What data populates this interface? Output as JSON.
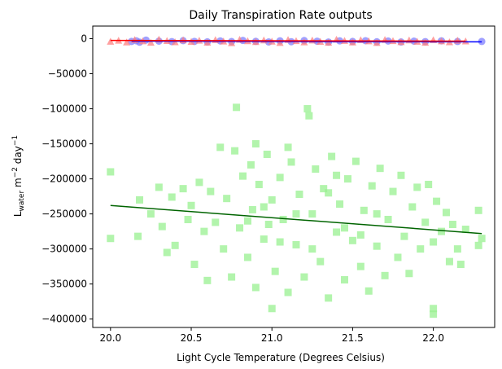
{
  "chart_data": {
    "type": "scatter",
    "title": "Daily Transpiration Rate outputs",
    "xlabel": "Light Cycle Temperature (Degrees Celsius)",
    "ylabel": {
      "base": "L",
      "sub": "water",
      "unit1": " m",
      "exp1": "−2",
      "unit2": " day",
      "exp2": "−1"
    },
    "xlim": [
      19.89,
      22.38
    ],
    "ylim": [
      -412000,
      18000
    ],
    "x_ticks": [
      {
        "value": 20.0,
        "label": "20.0"
      },
      {
        "value": 20.5,
        "label": "20.5"
      },
      {
        "value": 21.0,
        "label": "21.0"
      },
      {
        "value": 21.5,
        "label": "21.5"
      },
      {
        "value": 22.0,
        "label": "22.0"
      }
    ],
    "y_ticks": [
      {
        "value": 0,
        "label": "0"
      },
      {
        "value": -50000,
        "label": "−50000"
      },
      {
        "value": -100000,
        "label": "−100000"
      },
      {
        "value": -150000,
        "label": "−150000"
      },
      {
        "value": -200000,
        "label": "−200000"
      },
      {
        "value": -250000,
        "label": "−250000"
      },
      {
        "value": -300000,
        "label": "−300000"
      },
      {
        "value": -350000,
        "label": "−350000"
      },
      {
        "value": -400000,
        "label": "−400000"
      }
    ],
    "grid": false,
    "legend": "none",
    "series": [
      {
        "marker": "circle",
        "color": "#8080ff",
        "line_color": "#0000ff",
        "fit": [
          [
            20.13,
            -3500
          ],
          [
            22.3,
            -4500
          ]
        ],
        "points": [
          [
            20.13,
            -4000
          ],
          [
            20.16,
            -3000
          ],
          [
            20.18,
            -5000
          ],
          [
            20.22,
            -2000
          ],
          [
            20.3,
            -3500
          ],
          [
            20.38,
            -4200
          ],
          [
            20.45,
            -2800
          ],
          [
            20.52,
            -3900
          ],
          [
            20.6,
            -4500
          ],
          [
            20.68,
            -3200
          ],
          [
            20.75,
            -4100
          ],
          [
            20.82,
            -2500
          ],
          [
            20.9,
            -3800
          ],
          [
            20.98,
            -4600
          ],
          [
            21.05,
            -3000
          ],
          [
            21.12,
            -4300
          ],
          [
            21.2,
            -2700
          ],
          [
            21.28,
            -3600
          ],
          [
            21.35,
            -4800
          ],
          [
            21.42,
            -3100
          ],
          [
            21.5,
            -4000
          ],
          [
            21.58,
            -2900
          ],
          [
            21.65,
            -4400
          ],
          [
            21.72,
            -3300
          ],
          [
            21.8,
            -4700
          ],
          [
            21.88,
            -3500
          ],
          [
            21.95,
            -4200
          ],
          [
            22.05,
            -3000
          ],
          [
            22.15,
            -4000
          ],
          [
            22.3,
            -4000
          ]
        ]
      },
      {
        "marker": "triangle",
        "color": "#ff8080",
        "line_color": "#ff0000",
        "fit": [
          [
            20.0,
            -2500
          ],
          [
            22.2,
            -3500
          ]
        ],
        "points": [
          [
            20.0,
            -4500
          ],
          [
            20.05,
            -3000
          ],
          [
            20.1,
            -5500
          ],
          [
            20.15,
            -2000
          ],
          [
            20.2,
            -4000
          ],
          [
            20.25,
            -6000
          ],
          [
            20.3,
            -1500
          ],
          [
            20.35,
            -3500
          ],
          [
            20.4,
            -5200
          ],
          [
            20.45,
            -2500
          ],
          [
            20.5,
            -4800
          ],
          [
            20.55,
            -3000
          ],
          [
            20.6,
            -5800
          ],
          [
            20.65,
            -2200
          ],
          [
            20.7,
            -4200
          ],
          [
            20.75,
            -6500
          ],
          [
            20.8,
            -1800
          ],
          [
            20.85,
            -3800
          ],
          [
            20.9,
            -5000
          ],
          [
            20.95,
            -2600
          ],
          [
            21.0,
            -4400
          ],
          [
            21.05,
            -6200
          ],
          [
            21.1,
            -2000
          ],
          [
            21.15,
            -3600
          ],
          [
            21.2,
            -5400
          ],
          [
            21.25,
            -2800
          ],
          [
            21.3,
            -4600
          ],
          [
            21.35,
            -6000
          ],
          [
            21.4,
            -1600
          ],
          [
            21.45,
            -3400
          ],
          [
            21.5,
            -5600
          ],
          [
            21.55,
            -2400
          ],
          [
            21.6,
            -4000
          ],
          [
            21.65,
            -6300
          ],
          [
            21.7,
            -2100
          ],
          [
            21.75,
            -3700
          ],
          [
            21.8,
            -5100
          ],
          [
            21.85,
            -2700
          ],
          [
            21.9,
            -4500
          ],
          [
            21.95,
            -5900
          ],
          [
            22.0,
            -2300
          ],
          [
            22.05,
            -3900
          ],
          [
            22.1,
            -5300
          ],
          [
            22.15,
            -3000
          ],
          [
            22.2,
            -4100
          ]
        ]
      },
      {
        "marker": "square",
        "color": "#98f090",
        "line_color": "#006400",
        "fit": [
          [
            20.0,
            -238000
          ],
          [
            22.3,
            -278000
          ]
        ],
        "points": [
          [
            20.0,
            -190000
          ],
          [
            20.0,
            -285000
          ],
          [
            20.18,
            -230000
          ],
          [
            20.17,
            -282000
          ],
          [
            20.25,
            -250000
          ],
          [
            20.3,
            -212000
          ],
          [
            20.32,
            -268000
          ],
          [
            20.35,
            -305000
          ],
          [
            20.38,
            -226000
          ],
          [
            20.4,
            -295000
          ],
          [
            20.45,
            -214000
          ],
          [
            20.48,
            -258000
          ],
          [
            20.5,
            -238000
          ],
          [
            20.52,
            -322000
          ],
          [
            20.55,
            -205000
          ],
          [
            20.58,
            -275000
          ],
          [
            20.6,
            -345000
          ],
          [
            20.62,
            -218000
          ],
          [
            20.65,
            -262000
          ],
          [
            20.68,
            -155000
          ],
          [
            20.7,
            -300000
          ],
          [
            20.72,
            -228000
          ],
          [
            20.75,
            -340000
          ],
          [
            20.77,
            -160000
          ],
          [
            20.78,
            -98000
          ],
          [
            20.8,
            -270000
          ],
          [
            20.82,
            -196000
          ],
          [
            20.85,
            -312000
          ],
          [
            20.87,
            -180000
          ],
          [
            20.88,
            -244000
          ],
          [
            20.9,
            -355000
          ],
          [
            20.92,
            -208000
          ],
          [
            20.95,
            -286000
          ],
          [
            20.97,
            -165000
          ],
          [
            21.0,
            -230000
          ],
          [
            21.02,
            -332000
          ],
          [
            21.05,
            -198000
          ],
          [
            21.07,
            -258000
          ],
          [
            21.1,
            -362000
          ],
          [
            21.12,
            -176000
          ],
          [
            21.15,
            -294000
          ],
          [
            21.17,
            -222000
          ],
          [
            21.2,
            -340000
          ],
          [
            21.22,
            -100000
          ],
          [
            21.23,
            -110000
          ],
          [
            21.25,
            -250000
          ],
          [
            21.27,
            -186000
          ],
          [
            21.3,
            -318000
          ],
          [
            21.32,
            -214000
          ],
          [
            21.35,
            -370000
          ],
          [
            21.37,
            -168000
          ],
          [
            21.4,
            -276000
          ],
          [
            21.42,
            -236000
          ],
          [
            21.45,
            -344000
          ],
          [
            21.47,
            -200000
          ],
          [
            21.5,
            -288000
          ],
          [
            21.52,
            -175000
          ],
          [
            21.55,
            -325000
          ],
          [
            21.57,
            -245000
          ],
          [
            21.6,
            -360000
          ],
          [
            21.62,
            -210000
          ],
          [
            21.65,
            -296000
          ],
          [
            21.67,
            -185000
          ],
          [
            21.7,
            -338000
          ],
          [
            21.72,
            -258000
          ],
          [
            21.75,
            -218000
          ],
          [
            21.78,
            -312000
          ],
          [
            21.8,
            -195000
          ],
          [
            21.82,
            -282000
          ],
          [
            21.85,
            -335000
          ],
          [
            21.87,
            -240000
          ],
          [
            21.9,
            -212000
          ],
          [
            21.92,
            -300000
          ],
          [
            21.95,
            -262000
          ],
          [
            21.97,
            -208000
          ],
          [
            22.0,
            -290000
          ],
          [
            22.02,
            -232000
          ],
          [
            22.05,
            -275000
          ],
          [
            22.08,
            -248000
          ],
          [
            22.1,
            -318000
          ],
          [
            22.12,
            -265000
          ],
          [
            22.15,
            -300000
          ],
          [
            22.17,
            -322000
          ],
          [
            22.2,
            -272000
          ],
          [
            22.28,
            -245000
          ],
          [
            22.28,
            -295000
          ],
          [
            22.3,
            -285000
          ],
          [
            21.05,
            -290000
          ],
          [
            21.15,
            -250000
          ],
          [
            21.25,
            -300000
          ],
          [
            21.35,
            -220000
          ],
          [
            21.45,
            -270000
          ],
          [
            20.95,
            -240000
          ],
          [
            20.85,
            -260000
          ],
          [
            21.55,
            -280000
          ],
          [
            21.65,
            -250000
          ],
          [
            20.9,
            -150000
          ],
          [
            21.1,
            -155000
          ],
          [
            20.98,
            -265000
          ],
          [
            21.4,
            -195000
          ],
          [
            21.0,
            -385000
          ],
          [
            22.0,
            -393000
          ],
          [
            22.0,
            -385000
          ]
        ]
      }
    ]
  }
}
